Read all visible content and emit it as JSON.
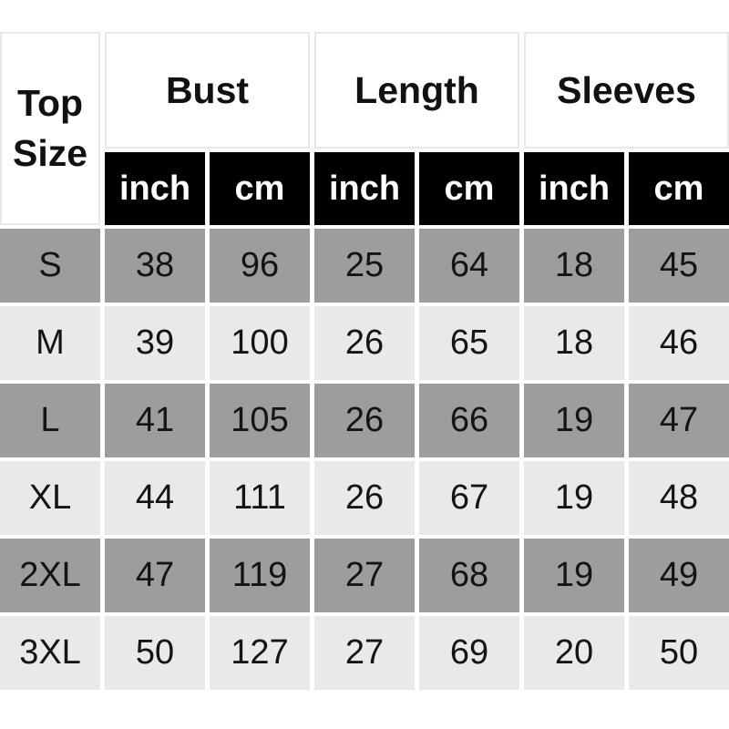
{
  "chart_data": {
    "type": "table",
    "corner_header": "Top Size",
    "column_groups": [
      {
        "label": "Bust",
        "units": [
          "inch",
          "cm"
        ]
      },
      {
        "label": "Length",
        "units": [
          "inch",
          "cm"
        ]
      },
      {
        "label": "Sleeves",
        "units": [
          "inch",
          "cm"
        ]
      }
    ],
    "rows": [
      {
        "size": "S",
        "values": [
          38,
          96,
          25,
          64,
          18,
          45
        ]
      },
      {
        "size": "M",
        "values": [
          39,
          100,
          26,
          65,
          18,
          46
        ]
      },
      {
        "size": "L",
        "values": [
          41,
          105,
          26,
          66,
          19,
          47
        ]
      },
      {
        "size": "XL",
        "values": [
          44,
          111,
          26,
          67,
          19,
          48
        ]
      },
      {
        "size": "2XL",
        "values": [
          47,
          119,
          27,
          68,
          19,
          49
        ]
      },
      {
        "size": "3XL",
        "values": [
          50,
          127,
          27,
          69,
          20,
          50
        ]
      }
    ]
  },
  "colors": {
    "row_dark": "#9d9d9d",
    "row_light": "#e9e9e9",
    "unit_header_bg": "#000000",
    "unit_header_text": "#ffffff",
    "header_bg": "#ffffff",
    "header_border": "#e8e8e8",
    "text": "#141414",
    "page_bg": "#ffffff"
  }
}
